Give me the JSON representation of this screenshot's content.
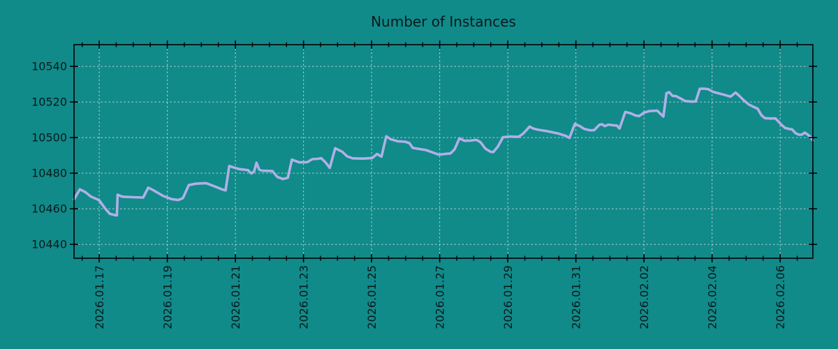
{
  "chart_data": {
    "type": "line",
    "title": "Number of Instances",
    "grid": "dashed",
    "legend": "none",
    "x_axis": {
      "label": "",
      "tick_labels": [
        "2026.01.17",
        "2026.01.19",
        "2026.01.21",
        "2026.01.23",
        "2026.01.25",
        "2026.01.27",
        "2026.01.29",
        "2026.01.31",
        "2026.02.02",
        "2026.02.04",
        "2026.02.06"
      ],
      "tick_days": [
        0,
        2,
        4,
        6,
        8,
        10,
        12,
        14,
        16,
        18,
        20
      ],
      "minor_tick_step_days": 0.5,
      "range_days": [
        -0.74,
        20.96
      ]
    },
    "y_axis": {
      "label": "",
      "tick_labels": [
        "10440",
        "10460",
        "10480",
        "10500",
        "10520",
        "10540"
      ],
      "tick_values": [
        10440,
        10460,
        10480,
        10500,
        10520,
        10540
      ],
      "range": [
        10432.2,
        10552.2
      ]
    },
    "series": [
      {
        "name": "instances",
        "color": "#b0b0e6",
        "points": [
          [
            -0.74,
            10465.3
          ],
          [
            -0.57,
            10470.9
          ],
          [
            -0.41,
            10469.4
          ],
          [
            -0.25,
            10466.9
          ],
          [
            0.0,
            10464.8
          ],
          [
            0.16,
            10460.5
          ],
          [
            0.31,
            10457.2
          ],
          [
            0.47,
            10456.4
          ],
          [
            0.52,
            10456.3
          ],
          [
            0.54,
            10467.9
          ],
          [
            0.68,
            10466.8
          ],
          [
            0.98,
            10466.5
          ],
          [
            1.29,
            10466.3
          ],
          [
            1.44,
            10471.9
          ],
          [
            1.6,
            10470.3
          ],
          [
            1.87,
            10467.3
          ],
          [
            2.11,
            10465.5
          ],
          [
            2.32,
            10464.9
          ],
          [
            2.46,
            10466.0
          ],
          [
            2.63,
            10473.3
          ],
          [
            2.83,
            10474.1
          ],
          [
            3.14,
            10474.4
          ],
          [
            3.4,
            10472.5
          ],
          [
            3.61,
            10470.9
          ],
          [
            3.71,
            10470.3
          ],
          [
            3.82,
            10484.0
          ],
          [
            4.1,
            10482.3
          ],
          [
            4.37,
            10481.7
          ],
          [
            4.47,
            10479.8
          ],
          [
            4.55,
            10481.0
          ],
          [
            4.62,
            10485.9
          ],
          [
            4.7,
            10482.0
          ],
          [
            4.78,
            10481.4
          ],
          [
            5.09,
            10481.2
          ],
          [
            5.23,
            10477.9
          ],
          [
            5.4,
            10476.7
          ],
          [
            5.54,
            10477.5
          ],
          [
            5.66,
            10487.6
          ],
          [
            5.87,
            10486.1
          ],
          [
            6.11,
            10486.2
          ],
          [
            6.26,
            10487.9
          ],
          [
            6.42,
            10488.1
          ],
          [
            6.52,
            10488.4
          ],
          [
            6.65,
            10486.0
          ],
          [
            6.77,
            10483.0
          ],
          [
            6.93,
            10494.0
          ],
          [
            7.14,
            10492.0
          ],
          [
            7.28,
            10489.5
          ],
          [
            7.45,
            10488.3
          ],
          [
            7.75,
            10488.2
          ],
          [
            8.02,
            10488.5
          ],
          [
            8.16,
            10490.8
          ],
          [
            8.29,
            10489.3
          ],
          [
            8.43,
            10500.7
          ],
          [
            8.57,
            10499.0
          ],
          [
            8.78,
            10497.9
          ],
          [
            8.98,
            10497.7
          ],
          [
            9.11,
            10496.9
          ],
          [
            9.21,
            10494.2
          ],
          [
            9.39,
            10493.6
          ],
          [
            9.6,
            10493.0
          ],
          [
            9.76,
            10491.9
          ],
          [
            9.97,
            10490.4
          ],
          [
            10.15,
            10490.8
          ],
          [
            10.32,
            10491.1
          ],
          [
            10.44,
            10493.5
          ],
          [
            10.58,
            10499.6
          ],
          [
            10.73,
            10498.2
          ],
          [
            10.91,
            10498.3
          ],
          [
            11.08,
            10498.7
          ],
          [
            11.2,
            10497.4
          ],
          [
            11.34,
            10493.8
          ],
          [
            11.49,
            10492.1
          ],
          [
            11.57,
            10491.8
          ],
          [
            11.71,
            10495.0
          ],
          [
            11.86,
            10500.2
          ],
          [
            12.06,
            10500.6
          ],
          [
            12.31,
            10500.4
          ],
          [
            12.43,
            10501.9
          ],
          [
            12.53,
            10503.8
          ],
          [
            12.64,
            10506.2
          ],
          [
            12.76,
            10505.0
          ],
          [
            12.92,
            10504.3
          ],
          [
            13.13,
            10503.7
          ],
          [
            13.31,
            10503.0
          ],
          [
            13.52,
            10502.1
          ],
          [
            13.7,
            10501.0
          ],
          [
            13.81,
            10499.8
          ],
          [
            13.97,
            10507.7
          ],
          [
            14.13,
            10506.3
          ],
          [
            14.24,
            10504.9
          ],
          [
            14.42,
            10504.1
          ],
          [
            14.54,
            10504.2
          ],
          [
            14.69,
            10507.2
          ],
          [
            14.77,
            10507.5
          ],
          [
            14.85,
            10506.4
          ],
          [
            14.95,
            10507.3
          ],
          [
            15.1,
            10506.9
          ],
          [
            15.2,
            10506.8
          ],
          [
            15.28,
            10505.1
          ],
          [
            15.45,
            10514.4
          ],
          [
            15.61,
            10513.6
          ],
          [
            15.75,
            10512.4
          ],
          [
            15.86,
            10512.1
          ],
          [
            16.0,
            10514.0
          ],
          [
            16.16,
            10514.9
          ],
          [
            16.39,
            10515.1
          ],
          [
            16.47,
            10513.6
          ],
          [
            16.57,
            10511.8
          ],
          [
            16.66,
            10525.0
          ],
          [
            16.74,
            10525.5
          ],
          [
            16.84,
            10523.4
          ],
          [
            16.94,
            10523.3
          ],
          [
            17.09,
            10521.8
          ],
          [
            17.21,
            10520.5
          ],
          [
            17.4,
            10520.2
          ],
          [
            17.52,
            10520.3
          ],
          [
            17.64,
            10527.4
          ],
          [
            17.76,
            10527.5
          ],
          [
            17.89,
            10527.2
          ],
          [
            18.03,
            10525.7
          ],
          [
            18.21,
            10524.8
          ],
          [
            18.42,
            10523.7
          ],
          [
            18.54,
            10523.0
          ],
          [
            18.69,
            10525.3
          ],
          [
            18.79,
            10523.6
          ],
          [
            18.93,
            10521.0
          ],
          [
            19.08,
            10518.6
          ],
          [
            19.2,
            10517.4
          ],
          [
            19.34,
            10516.2
          ],
          [
            19.45,
            10512.5
          ],
          [
            19.55,
            10510.9
          ],
          [
            19.75,
            10510.7
          ],
          [
            19.86,
            10510.8
          ],
          [
            19.94,
            10509.2
          ],
          [
            20.04,
            10507.2
          ],
          [
            20.14,
            10505.5
          ],
          [
            20.27,
            10504.8
          ],
          [
            20.35,
            10504.6
          ],
          [
            20.45,
            10502.5
          ],
          [
            20.55,
            10501.6
          ],
          [
            20.64,
            10501.7
          ],
          [
            20.72,
            10502.8
          ],
          [
            20.82,
            10501.5
          ],
          [
            20.9,
            10500.2
          ],
          [
            20.96,
            10498.4
          ]
        ]
      }
    ]
  },
  "colors": {
    "background": "#118a8a",
    "grid": "#bccccc",
    "axis": "#000000",
    "text": "#0a1a1a",
    "line": "#b0b0e6"
  }
}
